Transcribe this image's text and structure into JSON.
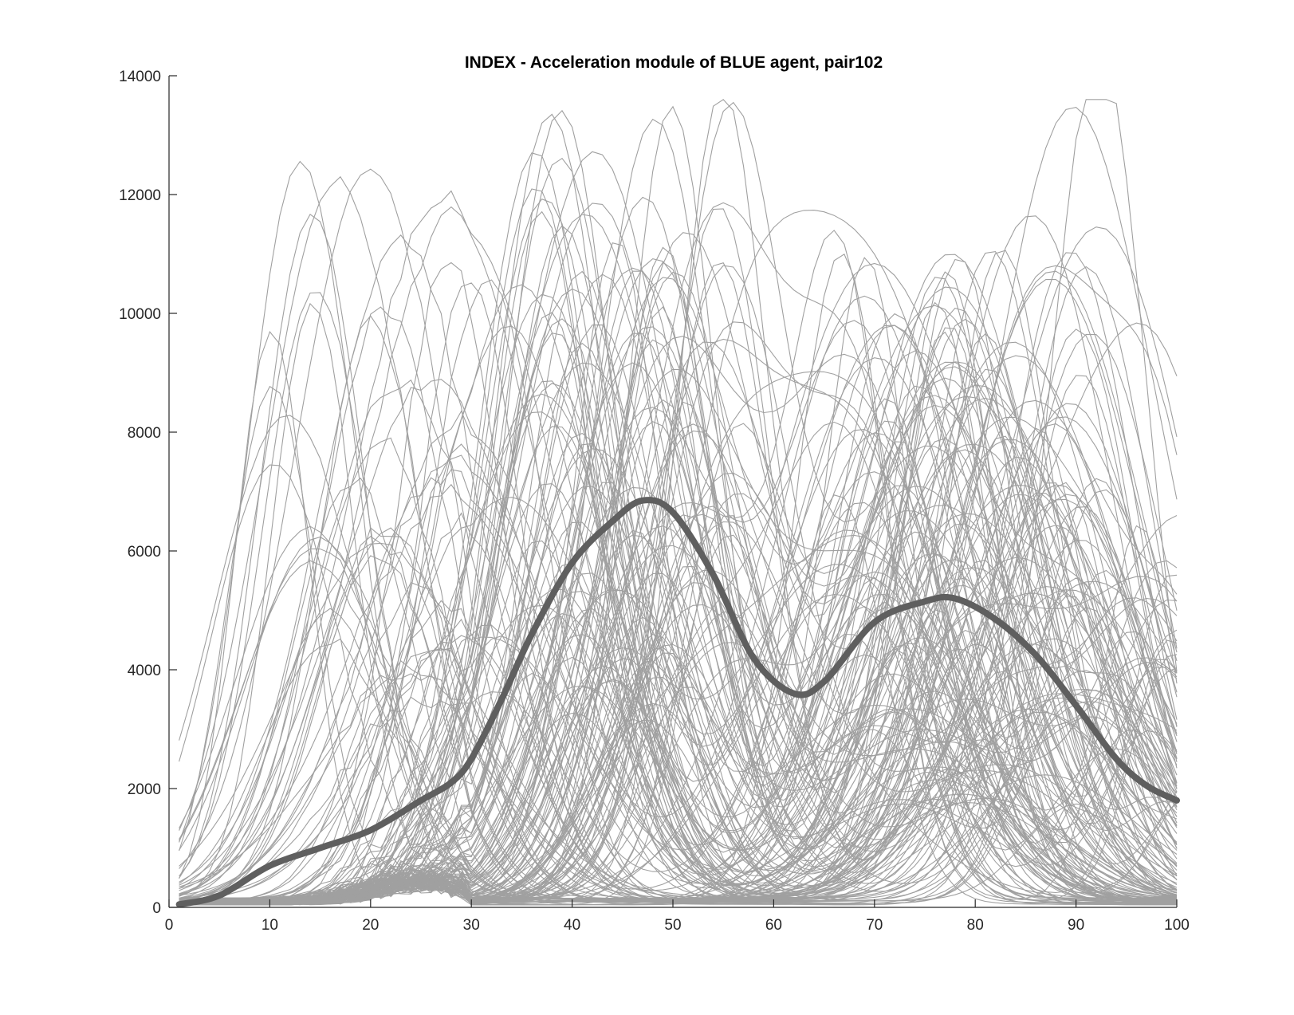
{
  "chart_data": {
    "type": "line",
    "title": "INDEX - Acceleration module of BLUE agent, pair102",
    "xlabel": "",
    "ylabel": "",
    "xlim": [
      0,
      100
    ],
    "ylim": [
      0,
      14000
    ],
    "xticks": [
      0,
      10,
      20,
      30,
      40,
      50,
      60,
      70,
      80,
      90,
      100
    ],
    "yticks": [
      0,
      2000,
      4000,
      6000,
      8000,
      10000,
      12000,
      14000
    ],
    "grid": false,
    "legend": "none",
    "colors": {
      "trials": "#a0a0a0",
      "mean": "#5f5f5f",
      "axis": "#262626"
    },
    "trials_count": 180,
    "mean_series": {
      "x": [
        1,
        5,
        10,
        15,
        20,
        25,
        28,
        30,
        33,
        36,
        40,
        44,
        47,
        50,
        54,
        58,
        62,
        65,
        70,
        75,
        78,
        82,
        86,
        90,
        94,
        97,
        100
      ],
      "values": [
        50,
        200,
        700,
        1000,
        1300,
        1800,
        2100,
        2500,
        3500,
        4600,
        5800,
        6500,
        6850,
        6650,
        5600,
        4200,
        3600,
        3800,
        4800,
        5150,
        5200,
        4850,
        4250,
        3400,
        2500,
        2050,
        1800
      ]
    }
  }
}
